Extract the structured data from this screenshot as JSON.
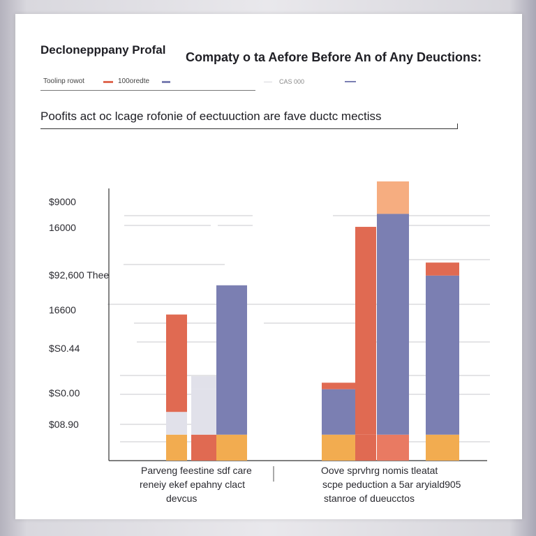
{
  "header": {
    "left_title": "Declonepppany Profal",
    "right_title": "Compaty o ta Aefore Before An of Any Deuctions:",
    "legend_label_1": "Toolinp rowot",
    "legend_label_2": "100oredte",
    "legend_label_3": "CAS 000"
  },
  "subtitle": "Poofits act oc lcage rofonie of eectuuction are fave ductc mectiss",
  "colors": {
    "orange": "#f2ac50",
    "red": "#e06a52",
    "salmon": "#e97a62",
    "peach": "#f6ad80",
    "purple": "#7b7fb2",
    "lavender": "#8a8cc0",
    "light": "#e1e1ea",
    "axis": "#333333",
    "grid": "#c8c8cc"
  },
  "chart_data": {
    "type": "bar",
    "stacked": true,
    "ytick_labels": [
      "$9000",
      "16000",
      "$92,600 Thee",
      "16600",
      "$S0.44",
      "$S0.00",
      "$08.90"
    ],
    "grid": true,
    "categories": [
      "Parveng feestine sdf care reneiy ekef epahny clact devcus",
      "Oove sprvhrg nomis tleatat scpe peduction a 5ar aryiald905 stanroe of dueucctos"
    ],
    "bars": [
      {
        "group": 0,
        "segments": [
          {
            "color": "orange",
            "value": 8
          },
          {
            "color": "light",
            "value": 7
          },
          {
            "color": "red",
            "value": 30
          }
        ]
      },
      {
        "group": 0,
        "segments": [
          {
            "color": "red",
            "value": 8
          },
          {
            "color": "light",
            "value": 14
          },
          {
            "color": "light",
            "value": 4
          }
        ]
      },
      {
        "group": 0,
        "segments": [
          {
            "color": "orange",
            "value": 8
          },
          {
            "color": "purple",
            "value": 46
          }
        ]
      },
      {
        "group": 1,
        "segments": [
          {
            "color": "orange",
            "value": 8
          },
          {
            "color": "purple",
            "value": 14
          },
          {
            "color": "red",
            "value": 2
          }
        ]
      },
      {
        "group": 1,
        "segments": [
          {
            "color": "red",
            "value": 8
          },
          {
            "color": "red",
            "value": 64
          }
        ]
      },
      {
        "group": 1,
        "segments": [
          {
            "color": "salmon",
            "value": 8
          },
          {
            "color": "purple",
            "value": 68
          },
          {
            "color": "peach",
            "value": 10
          }
        ]
      },
      {
        "group": 1,
        "segments": [
          {
            "color": "orange",
            "value": 8
          },
          {
            "color": "purple",
            "value": 49
          },
          {
            "color": "red",
            "value": 4
          }
        ]
      }
    ],
    "ylim": [
      0,
      92
    ]
  }
}
